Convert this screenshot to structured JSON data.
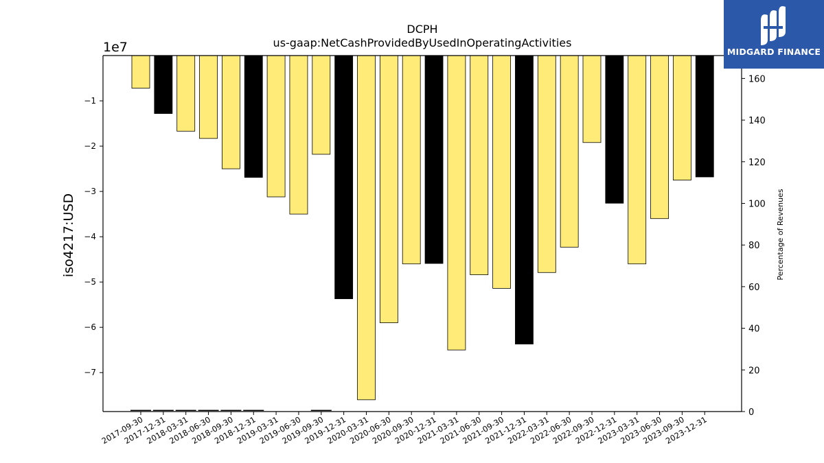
{
  "chart_data": {
    "type": "bar",
    "title": "DCPH",
    "subtitle": "us-gaap:NetCashProvidedByUsedInOperatingActivities",
    "ylabel": "iso4217:USD",
    "y_offset_label": "1e7",
    "y2label": "Percentage of Revenues",
    "ylim": [
      -78600000,
      0
    ],
    "y2lim": [
      0,
      171
    ],
    "yticks": [
      -1,
      -2,
      -3,
      -4,
      -5,
      -6,
      -7
    ],
    "y2ticks": [
      0,
      20,
      40,
      60,
      80,
      100,
      120,
      140,
      160
    ],
    "categories": [
      "2017-09-30",
      "2017-12-31",
      "2018-03-31",
      "2018-06-30",
      "2018-09-30",
      "2018-12-31",
      "2019-03-31",
      "2019-06-30",
      "2019-09-30",
      "2019-12-31",
      "2020-03-31",
      "2020-06-30",
      "2020-09-30",
      "2020-12-31",
      "2021-03-31",
      "2021-06-30",
      "2021-09-30",
      "2021-12-31",
      "2022-03-31",
      "2022-06-30",
      "2022-09-30",
      "2022-12-31",
      "2023-03-31",
      "2023-06-30",
      "2023-09-30",
      "2023-12-31"
    ],
    "values": [
      -7200000,
      -12800000,
      -16700000,
      -18300000,
      -25000000,
      -26900000,
      -31200000,
      -35000000,
      -21800000,
      -53700000,
      -76000000,
      -59000000,
      -46000000,
      -45900000,
      -65000000,
      -48400000,
      -51400000,
      -63700000,
      -47900000,
      -42300000,
      -19200000,
      -32600000,
      -46000000,
      -36000000,
      -27500000,
      -26800000
    ],
    "bar_colors": [
      "#ffeb77",
      "#000000",
      "#ffeb77",
      "#ffeb77",
      "#ffeb77",
      "#000000",
      "#ffeb77",
      "#ffeb77",
      "#ffeb77",
      "#000000",
      "#ffeb77",
      "#ffeb77",
      "#ffeb77",
      "#000000",
      "#ffeb77",
      "#ffeb77",
      "#ffeb77",
      "#000000",
      "#ffeb77",
      "#ffeb77",
      "#ffeb77",
      "#000000",
      "#ffeb77",
      "#ffeb77",
      "#ffeb77",
      "#000000"
    ],
    "percent_of_revenues": [
      0.3,
      0.3,
      0.3,
      0.3,
      0.3,
      0.3,
      0,
      0,
      0.3,
      0,
      0,
      0,
      0,
      0,
      0,
      0,
      0,
      0,
      0,
      0,
      0,
      0,
      0,
      0,
      0,
      0
    ],
    "grid": false
  },
  "logo": {
    "text": "MIDGARD FINANCE",
    "bg_color": "#2b58a9"
  }
}
